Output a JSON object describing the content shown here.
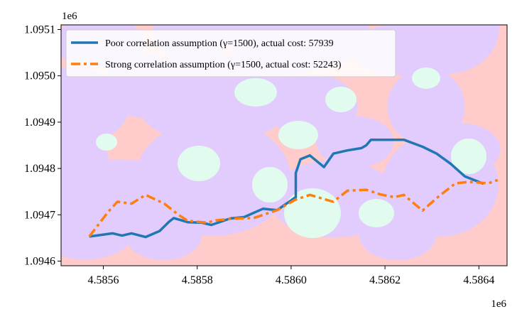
{
  "chart_data": {
    "type": "line",
    "title": "",
    "xlabel": "",
    "ylabel": "",
    "x_offset_label": "1e6",
    "y_offset_label": "1e6",
    "xlim": [
      4.58551,
      4.58646
    ],
    "ylim": [
      1.09459,
      1.09511
    ],
    "x_ticks": [
      {
        "value": 4.5856,
        "label": "4.5856"
      },
      {
        "value": 4.5858,
        "label": "4.5858"
      },
      {
        "value": 4.586,
        "label": "4.5860"
      },
      {
        "value": 4.5862,
        "label": "4.5862"
      },
      {
        "value": 4.5864,
        "label": "4.5864"
      }
    ],
    "y_ticks": [
      {
        "value": 1.0946,
        "label": "1.0946"
      },
      {
        "value": 1.0947,
        "label": "1.0947"
      },
      {
        "value": 1.0948,
        "label": "1.0948"
      },
      {
        "value": 1.0949,
        "label": "1.0949"
      },
      {
        "value": 1.095,
        "label": "1.0950"
      },
      {
        "value": 1.0951,
        "label": "1.0951"
      }
    ],
    "grid": false,
    "legend_position": "top-left",
    "background": {
      "description_colors": {
        "red": "#ffcccb",
        "purple": "#e2cbfd",
        "green": "#e1fcee",
        "white": "#ffffff"
      }
    },
    "series": [
      {
        "name": "Poor correlation assumption (γ=1500), actual cost: 57939",
        "color": "#1f77b4",
        "style": "solid",
        "x": [
          4.58557,
          4.58562,
          4.58564,
          4.58566,
          4.58569,
          4.58572,
          4.58574,
          4.58575,
          4.58578,
          4.58581,
          4.58583,
          4.58587,
          4.5859,
          4.58594,
          4.58597,
          4.58601,
          4.58601,
          4.58602,
          4.58604,
          4.58607,
          4.58609,
          4.58612,
          4.58615,
          4.58616,
          4.58617,
          4.58619,
          4.58621,
          4.58624,
          4.58628,
          4.58631,
          4.58634,
          4.58636,
          4.58637,
          4.58641
        ],
        "y": [
          1.094653,
          1.09466,
          1.094655,
          1.09466,
          1.094652,
          1.094665,
          1.094685,
          1.094693,
          1.094684,
          1.094683,
          1.094678,
          1.094692,
          1.094695,
          1.094713,
          1.09471,
          1.094738,
          1.09479,
          1.09482,
          1.094828,
          1.094803,
          1.094832,
          1.094839,
          1.094844,
          1.09485,
          1.094862,
          1.094862,
          1.094862,
          1.094862,
          1.094847,
          1.094832,
          1.09481,
          1.094792,
          1.094783,
          1.094767
        ]
      },
      {
        "name": "Strong correlation assumption (γ=1500, actual cost: 52243)",
        "color": "#ff7f0e",
        "style": "dashdot",
        "x": [
          4.58557,
          4.58561,
          4.58563,
          4.58566,
          4.58569,
          4.58573,
          4.58576,
          4.58578,
          4.58582,
          4.58584,
          4.58588,
          4.58592,
          4.58597,
          4.58601,
          4.58604,
          4.58609,
          4.58612,
          4.58616,
          4.58619,
          4.58622,
          4.58624,
          4.58628,
          4.58631,
          4.58635,
          4.58638,
          4.58642,
          4.58644
        ],
        "y": [
          1.094653,
          1.094706,
          1.094728,
          1.094724,
          1.094743,
          1.094724,
          1.0947,
          1.094687,
          1.094683,
          1.094688,
          1.094692,
          1.094693,
          1.09471,
          1.094733,
          1.094743,
          1.094728,
          1.094752,
          1.094754,
          1.094744,
          1.094738,
          1.094743,
          1.094709,
          1.094736,
          1.094768,
          1.094771,
          1.094768,
          1.094775
        ]
      }
    ]
  }
}
